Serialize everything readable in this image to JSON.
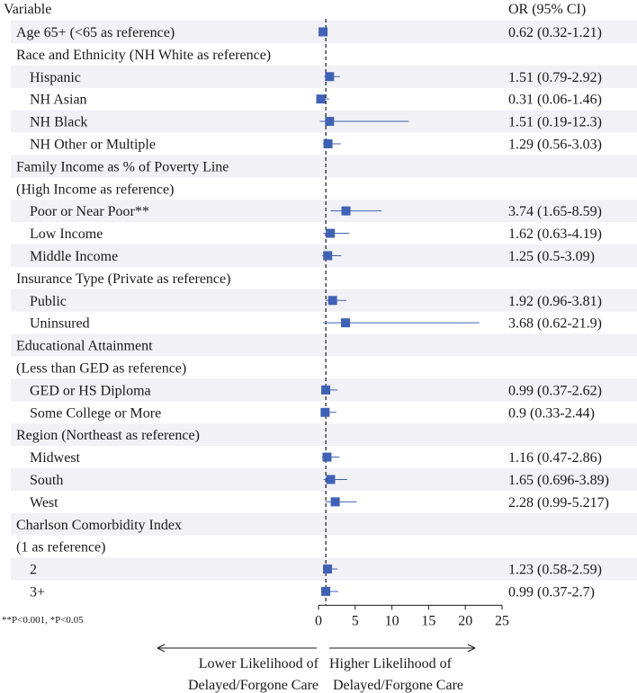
{
  "chart_data": {
    "type": "forest",
    "column_headers": {
      "variable": "Variable",
      "or_ci": "OR (95% CI)"
    },
    "reference_line": 1,
    "xlim": [
      0,
      25
    ],
    "xticks": [
      0,
      5,
      10,
      15,
      20,
      25
    ],
    "footnote": "**P<0.001, *P<0.05",
    "arrow_left_label": [
      "Lower Likelihood of",
      "Delayed/Forgone Care"
    ],
    "arrow_right_label": [
      "Higher Likelihood of",
      "Delayed/Forgone Care"
    ],
    "marker_color": "#4062b5",
    "shade_color": "#f1f1f6",
    "rows": [
      {
        "label": "Age 65+ (<65 as reference)",
        "level": 0,
        "or": 0.62,
        "lo": 0.32,
        "hi": 1.21,
        "text": "0.62 (0.32-1.21)"
      },
      {
        "label": "Race and Ethnicity (NH White as reference)",
        "level": 0
      },
      {
        "label": "Hispanic",
        "level": 1,
        "or": 1.51,
        "lo": 0.79,
        "hi": 2.92,
        "text": "1.51 (0.79-2.92)"
      },
      {
        "label": "NH Asian",
        "level": 1,
        "or": 0.31,
        "lo": 0.06,
        "hi": 1.46,
        "text": "0.31 (0.06-1.46)"
      },
      {
        "label": "NH Black",
        "level": 1,
        "or": 1.51,
        "lo": 0.19,
        "hi": 12.3,
        "text": "1.51 (0.19-12.3)"
      },
      {
        "label": "NH Other or Multiple",
        "level": 1,
        "or": 1.29,
        "lo": 0.56,
        "hi": 3.03,
        "text": "1.29 (0.56-3.03)"
      },
      {
        "label": "Family Income as % of Poverty Line",
        "level": 0
      },
      {
        "label": "(High Income as reference)",
        "level": 0
      },
      {
        "label": "Poor or Near Poor**",
        "level": 1,
        "or": 3.74,
        "lo": 1.65,
        "hi": 8.59,
        "text": "3.74 (1.65-8.59)"
      },
      {
        "label": "Low Income",
        "level": 1,
        "or": 1.62,
        "lo": 0.63,
        "hi": 4.19,
        "text": "1.62 (0.63-4.19)"
      },
      {
        "label": "Middle Income",
        "level": 1,
        "or": 1.25,
        "lo": 0.5,
        "hi": 3.09,
        "text": "1.25 (0.5-3.09)"
      },
      {
        "label": "Insurance Type (Private as reference)",
        "level": 0
      },
      {
        "label": "Public",
        "level": 1,
        "or": 1.92,
        "lo": 0.96,
        "hi": 3.81,
        "text": "1.92 (0.96-3.81)"
      },
      {
        "label": "Uninsured",
        "level": 1,
        "or": 3.68,
        "lo": 0.62,
        "hi": 21.9,
        "text": "3.68 (0.62-21.9)"
      },
      {
        "label": "Educational Attainment",
        "level": 0
      },
      {
        "label": "(Less than GED as reference)",
        "level": 0
      },
      {
        "label": "GED or HS Diploma",
        "level": 1,
        "or": 0.99,
        "lo": 0.37,
        "hi": 2.62,
        "text": "0.99 (0.37-2.62)"
      },
      {
        "label": "Some College or More",
        "level": 1,
        "or": 0.9,
        "lo": 0.33,
        "hi": 2.44,
        "text": "0.9 (0.33-2.44)"
      },
      {
        "label": "Region (Northeast as reference)",
        "level": 0
      },
      {
        "label": "Midwest",
        "level": 1,
        "or": 1.16,
        "lo": 0.47,
        "hi": 2.86,
        "text": "1.16 (0.47-2.86)"
      },
      {
        "label": "South",
        "level": 1,
        "or": 1.65,
        "lo": 0.696,
        "hi": 3.89,
        "text": "1.65 (0.696-3.89)"
      },
      {
        "label": "West",
        "level": 1,
        "or": 2.28,
        "lo": 0.99,
        "hi": 5.217,
        "text": "2.28 (0.99-5.217)"
      },
      {
        "label": "Charlson Comorbidity Index",
        "level": 0
      },
      {
        "label": "(1 as reference)",
        "level": 0
      },
      {
        "label": "2",
        "level": 1,
        "or": 1.23,
        "lo": 0.58,
        "hi": 2.59,
        "text": "1.23 (0.58-2.59)"
      },
      {
        "label": "3+",
        "level": 1,
        "or": 0.99,
        "lo": 0.37,
        "hi": 2.7,
        "text": "0.99 (0.37-2.7)"
      }
    ]
  }
}
